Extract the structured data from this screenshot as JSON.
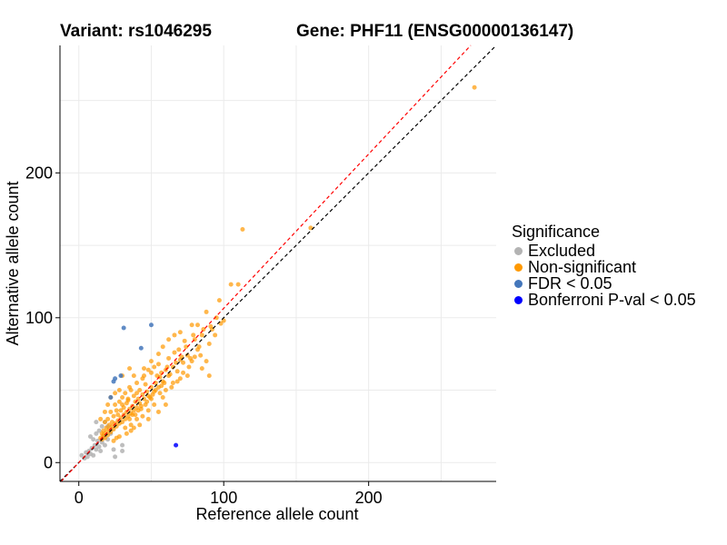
{
  "titles": {
    "variant": "Variant: rs1046295",
    "gene": "Gene: PHF11 (ENSG00000136147)"
  },
  "legend": {
    "title": "Significance",
    "items": [
      {
        "label": "Excluded",
        "color": "#b3b3b3"
      },
      {
        "label": "Non-significant",
        "color": "#ff9900"
      },
      {
        "label": "FDR < 0.05",
        "color": "#4477bb"
      },
      {
        "label": "Bonferroni P-val < 0.05",
        "color": "#0000ff"
      }
    ]
  },
  "chart_data": {
    "type": "scatter",
    "title": "Variant: rs1046295    Gene: PHF11 (ENSG00000136147)",
    "xlabel": "Reference allele count",
    "ylabel": "Alternative allele count",
    "xlim": [
      -13,
      288
    ],
    "ylim": [
      -13,
      288
    ],
    "x_ticks": [
      0,
      100,
      200
    ],
    "y_ticks": [
      0,
      100,
      200
    ],
    "x_tick_labels": [
      "0",
      "100",
      "200"
    ],
    "y_tick_labels": [
      "0",
      "100",
      "200"
    ],
    "grid": true,
    "reference_lines": [
      {
        "name": "y = x",
        "slope": 1.0,
        "intercept": 0,
        "color": "#000000",
        "style": "dashed"
      },
      {
        "name": "fitted ratio",
        "slope": 1.065,
        "intercept": 0,
        "color": "#ff0000",
        "style": "dashed"
      }
    ],
    "series": [
      {
        "name": "Excluded",
        "color": "#b3b3b3",
        "points": [
          [
            2,
            5
          ],
          [
            4,
            3
          ],
          [
            5,
            7
          ],
          [
            6,
            4
          ],
          [
            7,
            8
          ],
          [
            8,
            6
          ],
          [
            9,
            10
          ],
          [
            10,
            5
          ],
          [
            11,
            12
          ],
          [
            12,
            9
          ],
          [
            13,
            15
          ],
          [
            14,
            11
          ],
          [
            15,
            8
          ],
          [
            16,
            14
          ],
          [
            17,
            18
          ],
          [
            10,
            16
          ],
          [
            12,
            20
          ],
          [
            14,
            22
          ],
          [
            18,
            12
          ],
          [
            20,
            16
          ],
          [
            22,
            20
          ],
          [
            24,
            9
          ],
          [
            25,
            4
          ],
          [
            30,
            8
          ],
          [
            30,
            12
          ],
          [
            8,
            18
          ],
          [
            16,
            25
          ],
          [
            12,
            28
          ],
          [
            18,
            28
          ],
          [
            20,
            25
          ]
        ]
      },
      {
        "name": "Non-significant",
        "color": "#ff9900",
        "points": [
          [
            273,
            259
          ],
          [
            113,
            161
          ],
          [
            160,
            162
          ],
          [
            110,
            123
          ],
          [
            105,
            123
          ],
          [
            97,
            112
          ],
          [
            88,
            104
          ],
          [
            95,
            100
          ],
          [
            92,
            92
          ],
          [
            100,
            98
          ],
          [
            90,
            82
          ],
          [
            85,
            88
          ],
          [
            82,
            78
          ],
          [
            80,
            73
          ],
          [
            78,
            70
          ],
          [
            75,
            74
          ],
          [
            72,
            69
          ],
          [
            70,
            71
          ],
          [
            68,
            63
          ],
          [
            65,
            66
          ],
          [
            62,
            60
          ],
          [
            60,
            64
          ],
          [
            58,
            56
          ],
          [
            56,
            59
          ],
          [
            55,
            52
          ],
          [
            53,
            55
          ],
          [
            52,
            49
          ],
          [
            50,
            52
          ],
          [
            48,
            46
          ],
          [
            47,
            49
          ],
          [
            45,
            44
          ],
          [
            44,
            47
          ],
          [
            42,
            41
          ],
          [
            41,
            44
          ],
          [
            40,
            38
          ],
          [
            39,
            42
          ],
          [
            38,
            36
          ],
          [
            37,
            39
          ],
          [
            36,
            34
          ],
          [
            35,
            37
          ],
          [
            34,
            32
          ],
          [
            33,
            35
          ],
          [
            32,
            30
          ],
          [
            31,
            33
          ],
          [
            30,
            28
          ],
          [
            29,
            31
          ],
          [
            28,
            27
          ],
          [
            27,
            29
          ],
          [
            26,
            25
          ],
          [
            25,
            27
          ],
          [
            24,
            23
          ],
          [
            23,
            25
          ],
          [
            22,
            21
          ],
          [
            21,
            23
          ],
          [
            20,
            19
          ],
          [
            19,
            21
          ],
          [
            18,
            17
          ],
          [
            17,
            19
          ],
          [
            16,
            16
          ],
          [
            15,
            17
          ],
          [
            45,
            60
          ],
          [
            40,
            55
          ],
          [
            35,
            52
          ],
          [
            50,
            62
          ],
          [
            55,
            68
          ],
          [
            30,
            45
          ],
          [
            28,
            42
          ],
          [
            25,
            40
          ],
          [
            22,
            35
          ],
          [
            60,
            50
          ],
          [
            65,
            55
          ],
          [
            70,
            58
          ],
          [
            75,
            60
          ],
          [
            58,
            45
          ],
          [
            52,
            40
          ],
          [
            48,
            36
          ],
          [
            44,
            32
          ],
          [
            40,
            30
          ],
          [
            36,
            26
          ],
          [
            32,
            24
          ],
          [
            42,
            50
          ],
          [
            46,
            54
          ],
          [
            54,
            60
          ],
          [
            38,
            46
          ],
          [
            34,
            44
          ],
          [
            30,
            40
          ],
          [
            26,
            36
          ],
          [
            24,
            32
          ],
          [
            20,
            30
          ],
          [
            18,
            28
          ],
          [
            62,
            72
          ],
          [
            66,
            76
          ],
          [
            64,
            52
          ],
          [
            68,
            56
          ],
          [
            72,
            62
          ],
          [
            56,
            48
          ],
          [
            50,
            44
          ],
          [
            46,
            40
          ],
          [
            43,
            37
          ],
          [
            39,
            33
          ],
          [
            90,
            60
          ],
          [
            85,
            65
          ],
          [
            80,
            85
          ],
          [
            78,
            95
          ],
          [
            74,
            80
          ],
          [
            30,
            60
          ],
          [
            35,
            65
          ],
          [
            38,
            60
          ],
          [
            28,
            50
          ],
          [
            32,
            48
          ],
          [
            55,
            75
          ],
          [
            50,
            70
          ],
          [
            45,
            65
          ],
          [
            58,
            80
          ],
          [
            62,
            85
          ],
          [
            20,
            40
          ],
          [
            22,
            45
          ],
          [
            15,
            30
          ],
          [
            18,
            35
          ],
          [
            25,
            48
          ],
          [
            60,
            40
          ],
          [
            55,
            35
          ],
          [
            48,
            30
          ],
          [
            42,
            26
          ],
          [
            38,
            24
          ],
          [
            28,
            18
          ],
          [
            33,
            20
          ],
          [
            36,
            22
          ],
          [
            24,
            15
          ],
          [
            26,
            17
          ],
          [
            70,
            90
          ],
          [
            66,
            88
          ],
          [
            76,
            66
          ],
          [
            84,
            74
          ],
          [
            88,
            70
          ],
          [
            44,
            58
          ],
          [
            48,
            64
          ],
          [
            52,
            66
          ],
          [
            36,
            50
          ],
          [
            40,
            48
          ],
          [
            57,
            62
          ],
          [
            61,
            66
          ],
          [
            63,
            61
          ],
          [
            67,
            69
          ],
          [
            71,
            73
          ],
          [
            35,
            30
          ],
          [
            37,
            33
          ],
          [
            41,
            36
          ],
          [
            43,
            39
          ],
          [
            47,
            42
          ],
          [
            49,
            45
          ],
          [
            51,
            47
          ],
          [
            53,
            50
          ],
          [
            57,
            53
          ],
          [
            59,
            55
          ],
          [
            27,
            33
          ],
          [
            29,
            36
          ],
          [
            31,
            38
          ],
          [
            33,
            41
          ],
          [
            34,
            43
          ],
          [
            23,
            28
          ],
          [
            21,
            26
          ],
          [
            19,
            24
          ],
          [
            17,
            22
          ],
          [
            16,
            20
          ],
          [
            86,
            92
          ],
          [
            82,
            95
          ],
          [
            79,
            88
          ],
          [
            73,
            84
          ],
          [
            69,
            78
          ],
          [
            77,
            72
          ],
          [
            83,
            80
          ],
          [
            91,
            94
          ],
          [
            94,
            88
          ],
          [
            98,
            96
          ]
        ]
      },
      {
        "name": "FDR < 0.05",
        "color": "#4477bb",
        "points": [
          [
            31,
            93
          ],
          [
            50,
            95
          ],
          [
            43,
            79
          ],
          [
            24,
            56
          ],
          [
            22,
            45
          ],
          [
            25,
            58
          ],
          [
            29,
            60
          ]
        ]
      },
      {
        "name": "Bonferroni P-val < 0.05",
        "color": "#0000ff",
        "points": [
          [
            67,
            12
          ]
        ]
      }
    ]
  }
}
